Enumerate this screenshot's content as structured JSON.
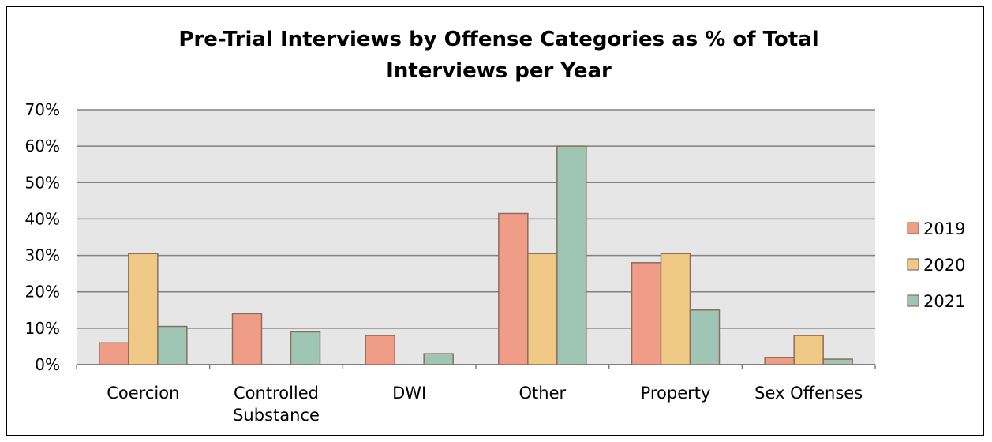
{
  "chart_data": {
    "type": "bar",
    "title_lines": [
      "Pre-Trial Interviews by Offense Categories as % of Total",
      "Interviews per Year"
    ],
    "categories": [
      [
        "Coercion"
      ],
      [
        "Controlled",
        "Substance"
      ],
      [
        "DWI"
      ],
      [
        "Other"
      ],
      [
        "Property"
      ],
      [
        "Sex Offenses"
      ]
    ],
    "series": [
      {
        "name": "2019",
        "color": "#f09d87",
        "values": [
          6,
          14,
          8,
          41.5,
          28,
          2
        ]
      },
      {
        "name": "2020",
        "color": "#f0c987",
        "values": [
          30.5,
          0,
          0,
          30.5,
          30.5,
          8
        ]
      },
      {
        "name": "2021",
        "color": "#9fc6b5",
        "values": [
          10.5,
          9,
          3,
          60,
          15,
          1.5
        ]
      }
    ],
    "ylim": [
      0,
      70
    ],
    "yticks": [
      "0%",
      "10%",
      "20%",
      "30%",
      "40%",
      "50%",
      "60%",
      "70%"
    ],
    "grid": true,
    "legend_position": "right",
    "plot_bg": "#e6e6e6",
    "grid_color": "#808080",
    "bar_outline": "#8c6d5f"
  }
}
